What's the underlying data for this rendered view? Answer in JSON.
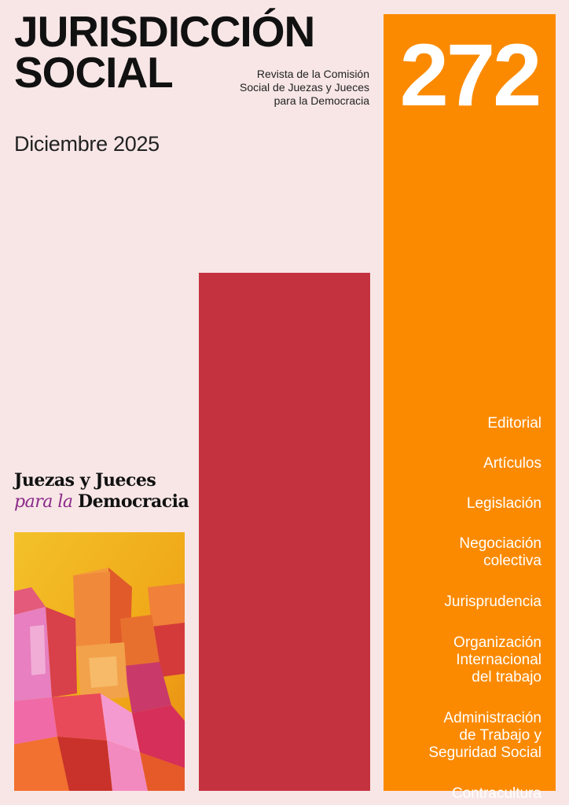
{
  "cover": {
    "title_line1": "JURISDICCIÓN",
    "title_line2": "SOCIAL",
    "subtitle_lines": [
      "Revista de la Comisión",
      "Social de Juezas y Jueces",
      "para la Democracia"
    ],
    "date": "Diciembre 2025",
    "issue_number": "272"
  },
  "toc": [
    "Editorial",
    "Artículos",
    "Legislación",
    "Negociación\ncolectiva",
    "Jurisprudencia",
    "Organización\nInternacional\ndel trabajo",
    "Administración\nde Trabajo y\nSeguridad Social",
    "Contracultura"
  ],
  "logo": {
    "line1": "Juezas y Jueces",
    "line2_italic": "para la",
    "line2_bold": "Democracia"
  },
  "colors": {
    "background": "#f8e6e6",
    "orange": "#fb8a00",
    "red": "#c5323f",
    "logo_italic": "#8b2a8a"
  }
}
